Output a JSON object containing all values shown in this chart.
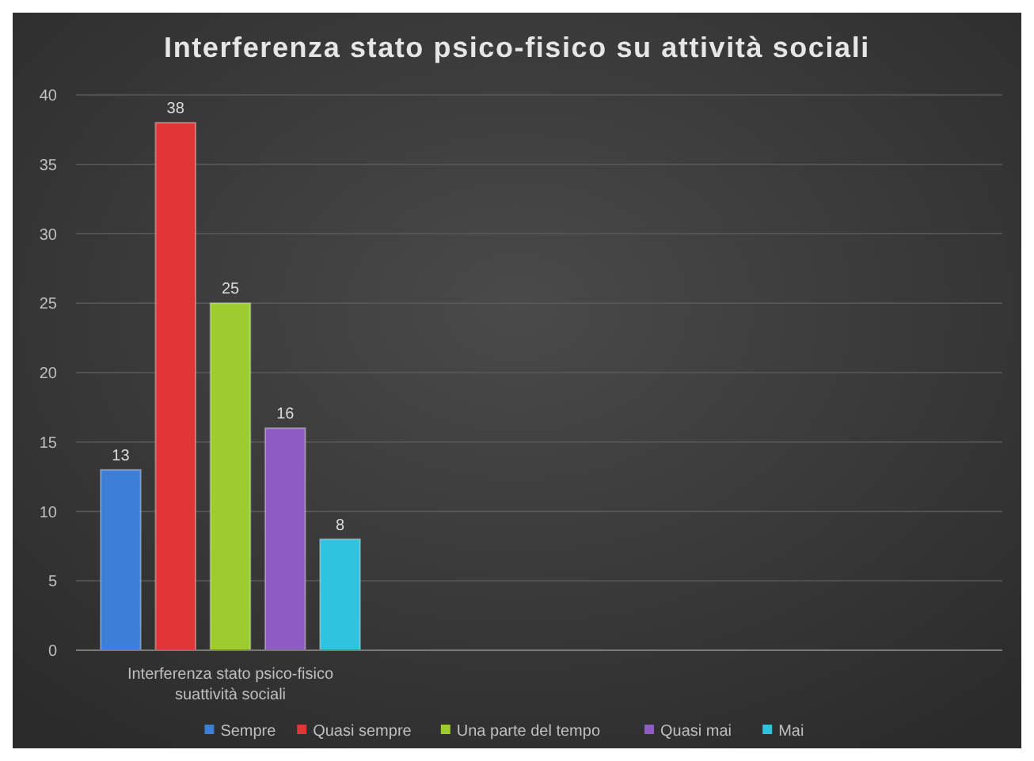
{
  "chart_data": {
    "type": "bar",
    "title": "Interferenza stato psico-fisico su attività sociali",
    "categories": [
      "Interferenza stato psico-fisico suattività sociali",
      null,
      null
    ],
    "series": [
      {
        "name": "Sempre",
        "color": "#3d7fd6",
        "values": [
          13,
          null,
          null
        ]
      },
      {
        "name": "Quasi sempre",
        "color": "#e03636",
        "values": [
          38,
          null,
          null
        ]
      },
      {
        "name": "Una parte del tempo",
        "color": "#9ccc2e",
        "values": [
          25,
          null,
          null
        ]
      },
      {
        "name": "Quasi mai",
        "color": "#8d5cc4",
        "values": [
          16,
          null,
          null
        ]
      },
      {
        "name": "Mai",
        "color": "#2fc3e0",
        "values": [
          8,
          null,
          null
        ]
      }
    ],
    "ylim": [
      0,
      40
    ],
    "yticks": [
      0,
      5,
      10,
      15,
      20,
      25,
      30,
      35,
      40
    ],
    "grid": "y",
    "legend": "bottom",
    "data_labels": true
  }
}
